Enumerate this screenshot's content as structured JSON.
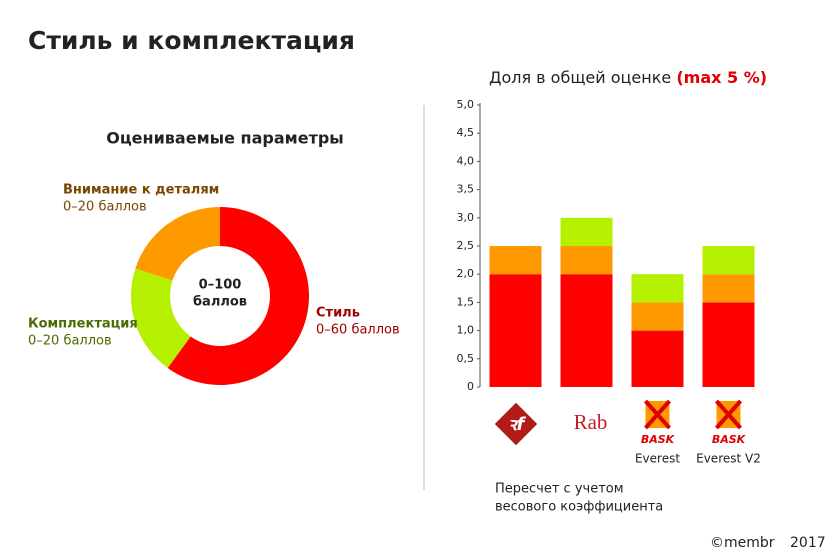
{
  "title": "Стиль и комплектация",
  "chart_data": [
    {
      "type": "donut",
      "title": "Оцениваемые параметры",
      "center_label": [
        "0–100",
        "баллов"
      ],
      "categories": [
        "Стиль",
        "Комплектация",
        "Внимание к деталям"
      ],
      "values": [
        60,
        20,
        20
      ],
      "value_labels": [
        "0–60 баллов",
        "0–20 баллов",
        "0–20 баллов"
      ],
      "colors": [
        "#ff0000",
        "#b4f000",
        "#ff9900"
      ],
      "label_colors": [
        "#a30000",
        "#4d6b00",
        "#7a4600"
      ]
    },
    {
      "type": "stacked-bar",
      "title": "Доля в общей оценке",
      "title_highlight": "(max 5 %)",
      "categories": [
        null,
        null,
        "Everest",
        "Everest V2"
      ],
      "logos": [
        null,
        "Rab",
        "BASK",
        "BASK"
      ],
      "series": [
        {
          "color": "#ff0000",
          "values": [
            2,
            2,
            1,
            1.5
          ]
        },
        {
          "color": "#ff9900",
          "values": [
            0.5,
            0.5,
            0.5,
            0.5
          ]
        },
        {
          "color": "#b4f000",
          "values": [
            0,
            0.5,
            0.5,
            0.5
          ]
        }
      ],
      "ylim": [
        0,
        5
      ],
      "yticks": [
        0,
        {
          "value": 0.5,
          "label": "0,5"
        },
        {
          "value": 1,
          "label": "1,0"
        },
        {
          "value": 1.5,
          "label": "1,5"
        },
        {
          "value": 2,
          "label": "2,0"
        },
        {
          "value": 2.5,
          "label": "2,5"
        },
        {
          "value": 3,
          "label": "3,0"
        },
        {
          "value": 3.5,
          "label": "3,5"
        },
        {
          "value": 4,
          "label": "4,0"
        },
        {
          "value": 4.5,
          "label": "4,5"
        },
        {
          "value": 5,
          "label": "5,0"
        }
      ],
      "note": [
        "Пересчет с учетом",
        "весового коэффициента"
      ]
    }
  ],
  "footer": {
    "brand": "©membr",
    "year": "2017"
  }
}
